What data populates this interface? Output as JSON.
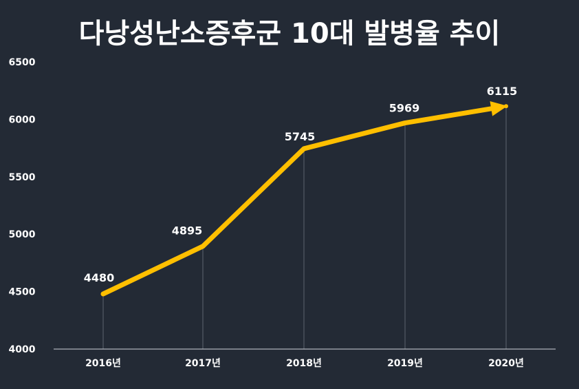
{
  "chart_data": {
    "type": "line",
    "title": "다낭성난소증후군 10대 발병율 추이",
    "categories": [
      "2016년",
      "2017년",
      "2018년",
      "2019년",
      "2020년"
    ],
    "series": [
      {
        "values": [
          4480,
          4895,
          5745,
          5969,
          6115
        ]
      }
    ],
    "data_labels": [
      "4480",
      "4895",
      "5745",
      "5969",
      "6115"
    ],
    "yticks": [
      4000,
      4500,
      5000,
      5500,
      6000,
      6500
    ],
    "ytick_labels": [
      "4000",
      "4500",
      "5000",
      "5500",
      "6000",
      "6500"
    ],
    "ylim": [
      4000,
      6500
    ],
    "grid": false,
    "line_color": "#ffbf00",
    "background": "#232a35",
    "end_marker": "arrow"
  }
}
